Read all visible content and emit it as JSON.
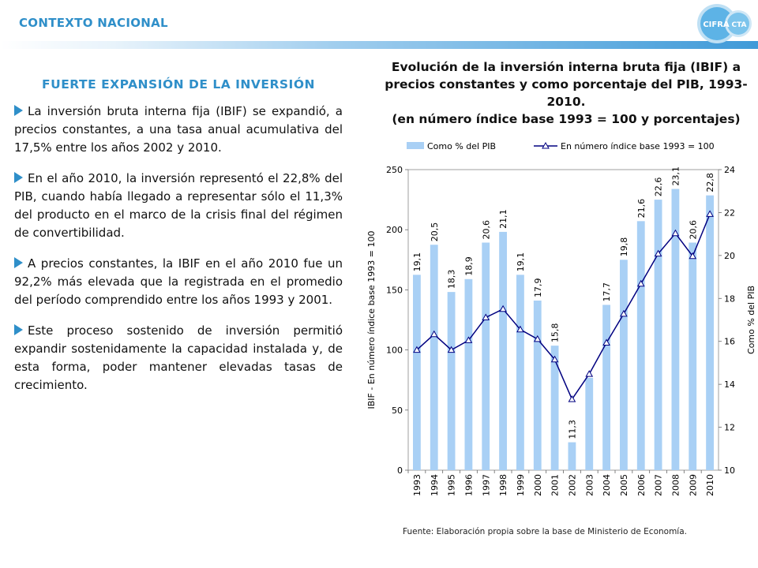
{
  "header": {
    "title": "CONTEXTO NACIONAL",
    "logo_left": "CIFRA",
    "logo_right": "CTA"
  },
  "left": {
    "title": "FUERTE EXPANSIÓN DE LA INVERSIÓN",
    "bullets": [
      "La inversión bruta interna fija (IBIF) se expandió, a precios constantes, a una tasa anual acumulativa del 17,5% entre los años 2002 y 2010.",
      "En el año 2010, la inversión representó el 22,8% del PIB, cuando había llegado a representar sólo el 11,3% del producto en el marco de la crisis final del régimen de convertibilidad.",
      "A precios constantes, la IBIF en el año 2010 fue un 92,2% más elevada que la registrada en el promedio del período comprendido entre los años 1993 y 2001.",
      "Este proceso sostenido de inversión permitió expandir sostenidamente la capacidad instalada y, de esta forma, poder mantener elevadas tasas de crecimiento."
    ]
  },
  "chart_title_line1": "Evolución de la inversión interna bruta fija (IBIF) a precios constantes y como porcentaje del PIB, 1993-2010.",
  "chart_title_line2": "(en número índice base 1993 = 100 y porcentajes)",
  "source": "Fuente: Elaboración propia sobre la base de Ministerio  de Economía.",
  "colors": {
    "accent": "#2f8fc9",
    "bar": "#a9d0f5",
    "line": "#000080"
  },
  "chart_data": {
    "type": "bar+line",
    "categories": [
      "1993",
      "1994",
      "1995",
      "1996",
      "1997",
      "1998",
      "1999",
      "2000",
      "2001",
      "2002",
      "2003",
      "2004",
      "2005",
      "2006",
      "2007",
      "2008",
      "2009",
      "2010"
    ],
    "series": [
      {
        "name": "Como % del PIB",
        "type": "bar",
        "axis": "right",
        "values": [
          19.1,
          20.5,
          18.3,
          18.9,
          20.6,
          21.1,
          19.1,
          17.9,
          15.8,
          11.3,
          14.3,
          17.7,
          19.8,
          21.6,
          22.6,
          23.1,
          20.6,
          22.8
        ],
        "labels": [
          "19,1",
          "20,5",
          "18,3",
          "18,9",
          "20,6",
          "21,1",
          "19,1",
          "17,9",
          "15,8",
          "11,3",
          "",
          "17,7",
          "19,8",
          "21,6",
          "22,6",
          "23,1",
          "20,6",
          "22,8"
        ]
      },
      {
        "name": "En número índice base 1993 = 100",
        "type": "line",
        "axis": "left",
        "values": [
          100,
          113,
          100,
          108,
          127,
          134,
          117,
          109,
          92,
          59,
          80,
          106,
          130,
          155,
          180,
          197,
          178,
          213
        ]
      }
    ],
    "ylabel_left": "IBIF - En número índice base 1993 = 100",
    "ylabel_right": "Como % del PIB",
    "ylim_left": [
      0,
      250
    ],
    "yticks_left": [
      "0",
      "50",
      "100",
      "150",
      "200",
      "250"
    ],
    "ylim_right": [
      10,
      24
    ],
    "yticks_right": [
      "10",
      "12",
      "14",
      "16",
      "18",
      "20",
      "22",
      "24"
    ],
    "legend_position": "top"
  }
}
